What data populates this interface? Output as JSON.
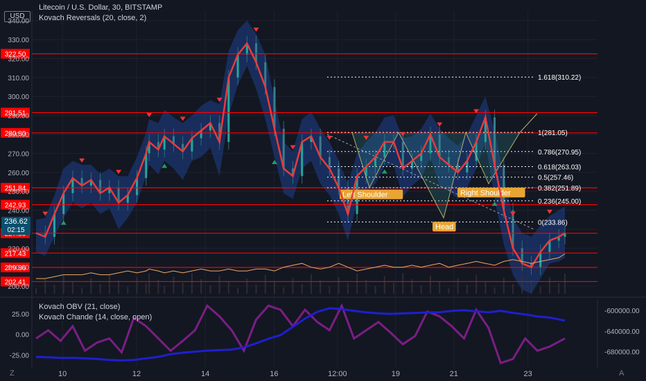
{
  "header": {
    "title": "Litecoin / U.S. Dollar, 30, BITSTAMP",
    "indicator": "Kovach Reversals (20, close, 2)",
    "lower_indicator_1": "Kovach OBV (21, close)",
    "lower_indicator_2": "Kovach Chande (14, close, open)"
  },
  "badges": {
    "currency": "USD",
    "last_price": "236.62",
    "countdown": "02:15",
    "bottom_left": "Z",
    "bottom_right": "A"
  },
  "colors": {
    "background": "#131722",
    "price_line": "#e83b3b",
    "candles": "#2c6e7a",
    "band": "#1d3f8a",
    "horizontal_levels": "#ff0000",
    "obv": "#1f1fcf",
    "chande": "#7b1e84",
    "volume_osc": "#f0a860",
    "pattern_label": "#e8a534"
  },
  "chart_data": [
    {
      "type": "line",
      "title": "Litecoin / U.S. Dollar, 30, BITSTAMP",
      "ylim": [
        196,
        345
      ],
      "y_ticks": [
        "340.00",
        "330.00",
        "320.00",
        "310.00",
        "300.00",
        "290.00",
        "280.00",
        "270.00",
        "260.00",
        "250.00",
        "240.00",
        "230.00",
        "220.00",
        "210.00",
        "200.00"
      ],
      "x_tick_labels": [
        "10",
        "12",
        "14",
        "16",
        "12:00",
        "19",
        "21",
        "23"
      ],
      "horizontal_levels": [
        "322.50",
        "291.51",
        "280.80",
        "251.84",
        "242.93",
        "227.89",
        "217.43",
        "209.86",
        "202.41"
      ],
      "fibonacci_levels": [
        {
          "label": "1.618(310.22)",
          "value": 310.22
        },
        {
          "label": "1(281.05)",
          "value": 281.05
        },
        {
          "label": "0.786(270.95)",
          "value": 270.95
        },
        {
          "label": "0.618(263.03)",
          "value": 263.03
        },
        {
          "label": "0.5(257.46)",
          "value": 257.46
        },
        {
          "label": "0.382(251.89)",
          "value": 251.89
        },
        {
          "label": "0.236(245.00)",
          "value": 245.0
        },
        {
          "label": "0(233.86)",
          "value": 233.86
        }
      ],
      "pattern_labels": {
        "left": "Left Shoulder",
        "head": "Head",
        "right": "Right Shoulder"
      },
      "x": [
        0,
        3,
        6,
        9,
        12,
        15,
        18,
        21,
        24,
        27,
        30,
        33,
        36,
        37,
        40,
        42,
        45,
        48,
        51,
        54,
        57,
        60,
        63,
        66,
        69,
        72,
        75,
        78,
        81,
        84,
        87,
        90,
        93,
        96,
        99,
        102,
        105,
        108,
        111,
        114,
        117,
        120,
        123,
        126,
        129,
        132,
        135,
        138,
        141,
        144,
        147,
        150,
        153,
        156,
        159,
        162,
        165,
        168,
        171,
        173
      ],
      "price": [
        228,
        226,
        238,
        249,
        257,
        253,
        256,
        249,
        252,
        244,
        248,
        257,
        270,
        276,
        272,
        279,
        275,
        271,
        278,
        282,
        286,
        276,
        310,
        322,
        328,
        318,
        305,
        283,
        262,
        258,
        276,
        279,
        268,
        262,
        252,
        238,
        258,
        263,
        268,
        276,
        276,
        262,
        266,
        270,
        280,
        268,
        264,
        260,
        266,
        276,
        289,
        264,
        240,
        220,
        212,
        210,
        218,
        224,
        226,
        228
      ],
      "band_upper": [
        235,
        236,
        248,
        262,
        266,
        264,
        264,
        259,
        262,
        258,
        258,
        268,
        281,
        288,
        286,
        293,
        289,
        286,
        290,
        295,
        298,
        296,
        324,
        335,
        340,
        333,
        322,
        298,
        276,
        271,
        288,
        292,
        283,
        276,
        266,
        254,
        270,
        276,
        281,
        289,
        290,
        278,
        279,
        283,
        291,
        283,
        278,
        274,
        280,
        290,
        300,
        282,
        258,
        236,
        228,
        226,
        232,
        237,
        240,
        242
      ],
      "band_lower": [
        218,
        216,
        226,
        236,
        244,
        241,
        244,
        238,
        241,
        230,
        236,
        244,
        258,
        264,
        259,
        266,
        262,
        256,
        266,
        268,
        273,
        258,
        290,
        306,
        316,
        304,
        288,
        268,
        249,
        246,
        262,
        266,
        254,
        248,
        238,
        224,
        244,
        249,
        254,
        263,
        264,
        247,
        253,
        257,
        268,
        253,
        250,
        246,
        252,
        262,
        276,
        246,
        222,
        206,
        198,
        196,
        204,
        212,
        213,
        215
      ],
      "volume_osc": [
        204,
        204,
        205,
        206,
        206,
        206,
        207,
        206,
        206,
        207,
        208,
        207,
        208,
        209,
        208,
        207,
        208,
        207,
        208,
        209,
        208,
        208,
        209,
        208,
        208,
        209,
        209,
        208,
        210,
        211,
        212,
        210,
        209,
        210,
        212,
        210,
        208,
        209,
        210,
        211,
        210,
        210,
        211,
        210,
        211,
        212,
        210,
        211,
        212,
        213,
        212,
        211,
        213,
        214,
        213,
        212,
        213,
        214,
        215,
        217
      ]
    },
    {
      "type": "line",
      "series_names": [
        "Kovach OBV (21, close)",
        "Kovach Chande (14, close, open)"
      ],
      "y_ticks_left": [
        "25.00",
        "0.00",
        "-25.00"
      ],
      "y_ticks_right": [
        "-600000.00",
        "-640000.00",
        "-680000.00"
      ],
      "left_ylim": [
        -40,
        42
      ],
      "right_ylim": [
        -710000,
        -580000
      ],
      "x": [
        0,
        4,
        8,
        12,
        16,
        20,
        24,
        28,
        32,
        36,
        40,
        44,
        48,
        52,
        56,
        60,
        64,
        68,
        72,
        76,
        80,
        84,
        88,
        92,
        96,
        100,
        104,
        108,
        112,
        116,
        120,
        124,
        128,
        132,
        136,
        140,
        144,
        148,
        152,
        156,
        160,
        164,
        168,
        173
      ],
      "obv": [
        -690000,
        -691000,
        -692000,
        -692000,
        -693000,
        -694000,
        -696000,
        -697000,
        -696000,
        -693000,
        -690000,
        -685000,
        -682000,
        -680000,
        -678000,
        -677000,
        -676000,
        -672000,
        -664000,
        -655000,
        -648000,
        -632000,
        -616000,
        -603000,
        -596000,
        -598000,
        -601000,
        -604000,
        -606000,
        -607000,
        -606000,
        -605000,
        -604000,
        -604000,
        -601000,
        -600000,
        -602000,
        -604000,
        -601000,
        -605000,
        -608000,
        -612000,
        -614000,
        -620000
      ],
      "chande": [
        -5,
        5,
        -8,
        10,
        -20,
        -10,
        -5,
        -22,
        20,
        10,
        -5,
        -20,
        -8,
        5,
        35,
        22,
        5,
        -20,
        18,
        35,
        30,
        10,
        30,
        15,
        5,
        35,
        -5,
        5,
        15,
        2,
        -12,
        -2,
        28,
        22,
        10,
        -5,
        30,
        8,
        -35,
        -30,
        -5,
        -20,
        -15,
        -5
      ]
    }
  ]
}
